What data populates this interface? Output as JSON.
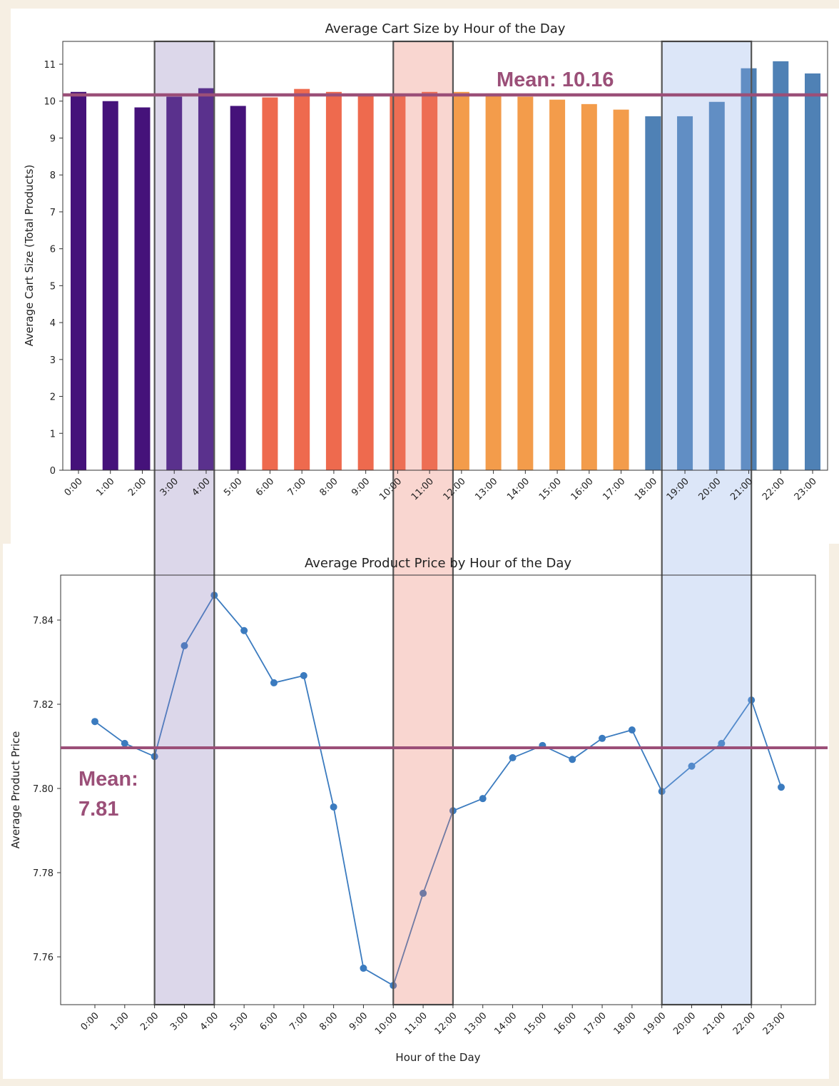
{
  "colors": {
    "mean_line": "#9b4f78",
    "line_series": "#3b7bbf",
    "bar_groups": [
      "#45127a",
      "#ee6a4e",
      "#f39c4b",
      "#4f81b5"
    ],
    "band_purple": "#dcd7ea",
    "band_red": "#f9d6d0",
    "band_blue": "#dce6f8"
  },
  "highlight_bands": [
    {
      "from": "2:00",
      "to": "4:00",
      "color": "purple"
    },
    {
      "from": "10:00",
      "to": "12:00",
      "color": "red"
    },
    {
      "from": "19:00",
      "to": "22:00",
      "color": "blue"
    }
  ],
  "chart_data": [
    {
      "type": "bar",
      "title": "Average Cart Size by Hour of the Day",
      "xlabel": "",
      "ylabel": "Average Cart Size (Total Products)",
      "ylim": [
        0,
        11.6
      ],
      "yticks": [
        "0",
        "1",
        "2",
        "3",
        "4",
        "5",
        "6",
        "7",
        "8",
        "9",
        "10",
        "11"
      ],
      "categories": [
        "0:00",
        "1:00",
        "2:00",
        "3:00",
        "4:00",
        "5:00",
        "6:00",
        "7:00",
        "8:00",
        "9:00",
        "10:00",
        "11:00",
        "12:00",
        "13:00",
        "14:00",
        "15:00",
        "16:00",
        "17:00",
        "18:00",
        "19:00",
        "20:00",
        "21:00",
        "22:00",
        "23:00"
      ],
      "values": [
        10.25,
        10.0,
        9.83,
        10.12,
        10.35,
        9.87,
        10.1,
        10.33,
        10.25,
        10.15,
        10.17,
        10.25,
        10.25,
        10.21,
        10.12,
        10.04,
        9.92,
        9.77,
        9.59,
        9.59,
        9.98,
        10.89,
        11.08,
        10.75
      ],
      "bar_color_group": [
        0,
        0,
        0,
        0,
        0,
        0,
        1,
        1,
        1,
        1,
        1,
        1,
        2,
        2,
        2,
        2,
        2,
        2,
        3,
        3,
        3,
        3,
        3,
        3
      ],
      "mean": 10.16,
      "mean_label": "Mean: 10.16",
      "grid": false
    },
    {
      "type": "line",
      "title": "Average Product Price by Hour of the Day",
      "xlabel": "Hour of the Day",
      "ylabel": "Average Product Price",
      "ylim": [
        7.748,
        7.85
      ],
      "yticks": [
        "7.76",
        "7.78",
        "7.80",
        "7.82",
        "7.84"
      ],
      "categories": [
        "0:00",
        "1:00",
        "2:00",
        "3:00",
        "4:00",
        "5:00",
        "6:00",
        "7:00",
        "8:00",
        "9:00",
        "10:00",
        "11:00",
        "12:00",
        "13:00",
        "14:00",
        "15:00",
        "16:00",
        "17:00",
        "18:00",
        "19:00",
        "20:00",
        "21:00",
        "22:00",
        "23:00"
      ],
      "values": [
        7.8159,
        7.8107,
        7.8076,
        7.8339,
        7.8459,
        7.8375,
        7.8251,
        7.8268,
        7.7956,
        7.7573,
        7.7532,
        7.7751,
        7.7947,
        7.7976,
        7.8073,
        7.8102,
        7.8069,
        7.8119,
        7.8139,
        7.7993,
        7.8053,
        7.8107,
        7.821,
        7.8003
      ],
      "mean": 7.81,
      "mean_label_line1": "Mean:",
      "mean_label_line2": "7.81",
      "grid": false
    }
  ]
}
